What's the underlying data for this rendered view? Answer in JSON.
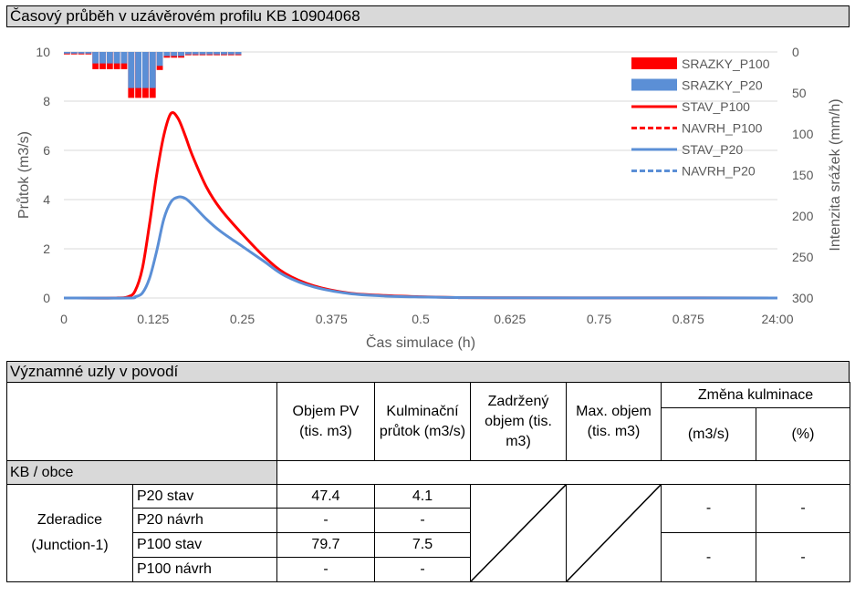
{
  "header": {
    "title": "Časový průběh v uzávěrovém profilu KB 10904068"
  },
  "chart_data": {
    "type": "line",
    "xlabel": "Čas simulace (h)",
    "ylabel": "Průtok (m3/s)",
    "y2label": "Intenzita srážek (mm/h)",
    "x_ticks": [
      "0",
      "0.125",
      "0.25",
      "0.375",
      "0.5",
      "0.625",
      "0.75",
      "0.875",
      "24:00"
    ],
    "xlim": [
      0,
      1
    ],
    "ylim": [
      0,
      10
    ],
    "y_ticks": [
      "0",
      "2",
      "4",
      "6",
      "8",
      "10"
    ],
    "y2lim": [
      0,
      300
    ],
    "y2_reversed": true,
    "y2_ticks": [
      "0",
      "50",
      "100",
      "150",
      "200",
      "250",
      "300"
    ],
    "grid": true,
    "legend_position": "top-right",
    "rain": {
      "x": [
        0.0,
        0.01,
        0.02,
        0.03,
        0.04,
        0.05,
        0.06,
        0.07,
        0.08,
        0.09,
        0.1,
        0.11,
        0.12,
        0.13,
        0.14,
        0.15,
        0.16,
        0.17,
        0.18,
        0.19,
        0.2,
        0.21,
        0.22,
        0.23,
        0.24
      ],
      "width": 0.01
    },
    "series": [
      {
        "name": "SRAZKY_P100",
        "kind": "bar",
        "color": "#ff0000",
        "values": [
          3,
          3,
          3,
          3,
          21,
          21,
          21,
          21,
          21,
          56,
          56,
          56,
          56,
          22,
          7,
          7,
          7,
          4,
          4,
          4,
          4,
          4,
          4,
          4,
          4
        ]
      },
      {
        "name": "SRAZKY_P20",
        "kind": "bar",
        "color": "#5b8fd6",
        "values": [
          2,
          2,
          2,
          2,
          14,
          14,
          14,
          14,
          14,
          44,
          44,
          44,
          44,
          17,
          5,
          5,
          5,
          3,
          3,
          3,
          3,
          3,
          3,
          3,
          3
        ]
      },
      {
        "name": "STAV_P100",
        "kind": "line",
        "color": "#ff0000",
        "dash": false,
        "x": [
          0,
          0.07,
          0.09,
          0.1,
          0.11,
          0.12,
          0.13,
          0.14,
          0.15,
          0.16,
          0.17,
          0.18,
          0.2,
          0.22,
          0.25,
          0.28,
          0.31,
          0.35,
          0.4,
          0.45,
          0.5,
          0.55,
          0.6,
          1.0
        ],
        "values": [
          0,
          0,
          0.05,
          0.3,
          1.2,
          3.0,
          5.0,
          6.6,
          7.5,
          7.3,
          6.6,
          5.8,
          4.5,
          3.6,
          2.6,
          1.7,
          1.0,
          0.5,
          0.2,
          0.1,
          0.05,
          0.02,
          0.01,
          0
        ]
      },
      {
        "name": "NAVRH_P100",
        "kind": "line",
        "color": "#ff0000",
        "dash": true,
        "x": [],
        "values": []
      },
      {
        "name": "STAV_P20",
        "kind": "line",
        "color": "#5b8fd6",
        "dash": false,
        "x": [
          0,
          0.09,
          0.1,
          0.11,
          0.12,
          0.13,
          0.14,
          0.15,
          0.16,
          0.17,
          0.18,
          0.2,
          0.22,
          0.25,
          0.28,
          0.31,
          0.35,
          0.4,
          0.45,
          0.5,
          0.55,
          0.6,
          1.0
        ],
        "values": [
          0,
          0,
          0.05,
          0.2,
          0.8,
          1.9,
          3.2,
          3.9,
          4.1,
          4.05,
          3.8,
          3.2,
          2.7,
          2.1,
          1.5,
          0.9,
          0.45,
          0.18,
          0.08,
          0.04,
          0.02,
          0.01,
          0
        ]
      },
      {
        "name": "NAVRH_P20",
        "kind": "line",
        "color": "#5b8fd6",
        "dash": true,
        "x": [],
        "values": []
      }
    ]
  },
  "table": {
    "section_title": "Významné uzly v povodí",
    "headers": {
      "volume": "Objem PV (tis. m3)",
      "peak": "Kulminační průtok (m3/s)",
      "retained": "Zadržený objem (tis. m3)",
      "maxvol": "Max. objem (tis. m3)",
      "change": "Změna kulminace",
      "change_abs": "(m3/s)",
      "change_pct": "(%)"
    },
    "group_label": "KB / obce",
    "node_name": "Zderadice",
    "node_id": "(Junction-1)",
    "rows": [
      {
        "scenario": "P20 stav",
        "volume": "47.4",
        "peak": "4.1"
      },
      {
        "scenario": "P20 návrh",
        "volume": "-",
        "peak": "-"
      },
      {
        "scenario": "P100 stav",
        "volume": "79.7",
        "peak": "7.5"
      },
      {
        "scenario": "P100 návrh",
        "volume": "-",
        "peak": "-"
      }
    ],
    "change_values": {
      "p20_abs": "-",
      "p20_pct": "-",
      "p100_abs": "-",
      "p100_pct": "-"
    }
  }
}
